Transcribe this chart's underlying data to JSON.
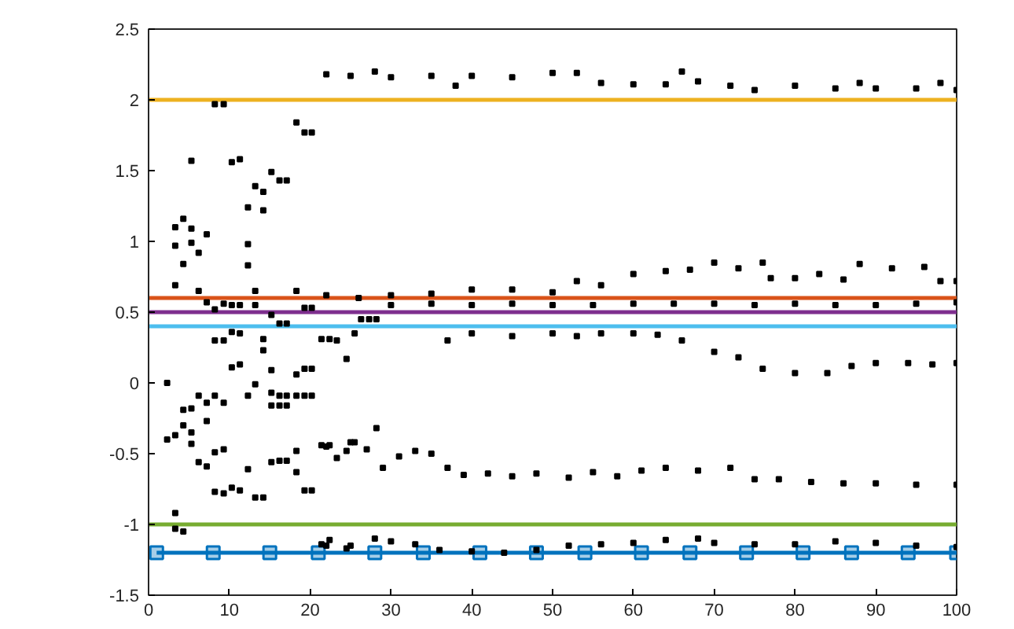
{
  "chart_data": {
    "type": "scatter",
    "xlim": [
      0,
      100
    ],
    "ylim": [
      -1.5,
      2.5
    ],
    "xticks": [
      0,
      10,
      20,
      30,
      40,
      50,
      60,
      70,
      80,
      90,
      100
    ],
    "yticks": [
      -1.5,
      -1,
      -0.5,
      0,
      0.5,
      1,
      1.5,
      2,
      2.5
    ],
    "grid": false,
    "series": [
      {
        "type": "line",
        "color": "#edb120",
        "marker": "none",
        "x": [
          0,
          100
        ],
        "values": [
          2,
          2
        ]
      },
      {
        "type": "line",
        "color": "#d95319",
        "marker": "none",
        "x": [
          0,
          100
        ],
        "values": [
          0.6,
          0.6
        ]
      },
      {
        "type": "line",
        "color": "#7e2f8e",
        "marker": "none",
        "x": [
          0,
          100
        ],
        "values": [
          0.5,
          0.5
        ]
      },
      {
        "type": "line",
        "color": "#4dbeee",
        "marker": "none",
        "x": [
          0,
          100
        ],
        "values": [
          0.4,
          0.4
        ]
      },
      {
        "type": "line",
        "color": "#77ac30",
        "marker": "none",
        "x": [
          0,
          100
        ],
        "values": [
          -1,
          -1
        ]
      },
      {
        "type": "line",
        "color": "#0072bd",
        "marker": "square",
        "x": [
          1,
          8,
          15,
          21,
          28,
          34,
          41,
          48,
          54,
          61,
          67,
          74,
          81,
          87,
          94,
          100
        ],
        "values": [
          -1.2,
          -1.2,
          -1.2,
          -1.2,
          -1.2,
          -1.2,
          -1.2,
          -1.2,
          -1.2,
          -1.2,
          -1.2,
          -1.2,
          -1.2,
          -1.2,
          -1.2,
          -1.2
        ]
      },
      {
        "color": "#000000",
        "marker": "square",
        "x": [
          22,
          25,
          28,
          30,
          35,
          38,
          40,
          45,
          50,
          53,
          56,
          60,
          64,
          66,
          68,
          72,
          75,
          80,
          85,
          88,
          90,
          95,
          98,
          100,
          30,
          35,
          40,
          45,
          50,
          53,
          56,
          60,
          64,
          67,
          70,
          73,
          76,
          77,
          80,
          83,
          86,
          88,
          92,
          96,
          98,
          100,
          22,
          26,
          30,
          35,
          40,
          45,
          50,
          55,
          60,
          65,
          70,
          75,
          80,
          85,
          90,
          95,
          100,
          37,
          40,
          45,
          50,
          53,
          56,
          60,
          63,
          66,
          70,
          73,
          76,
          80,
          84,
          87,
          90,
          94,
          97,
          100,
          22,
          25,
          27,
          29,
          31,
          33,
          35,
          37,
          39,
          42,
          45,
          48,
          52,
          55,
          58,
          61,
          64,
          68,
          72,
          75,
          78,
          82,
          86,
          90,
          95,
          100,
          22,
          25,
          28,
          30,
          33,
          36,
          40,
          44,
          48,
          52,
          56,
          60,
          64,
          68,
          70,
          75,
          80,
          85,
          90,
          95,
          100,
          3.3,
          3.3,
          4.3,
          4.3,
          5.3,
          5.3,
          5.3,
          6.2,
          7.2,
          8.2,
          9.3,
          10.3,
          11.3,
          12.3,
          12.3,
          12.3,
          13.2,
          14.2,
          14.2,
          15.2,
          16.2,
          17.1,
          18.3,
          19.3,
          20.2,
          2.3,
          2.3,
          3.3,
          3.3,
          3.3,
          3.3,
          4.3,
          4.3,
          4.3,
          5.3,
          5.3,
          5.3,
          6.2,
          6.2,
          6.2,
          7.2,
          7.2,
          7.2,
          7.2,
          8.2,
          8.2,
          8.2,
          8.2,
          8.2,
          9.3,
          9.3,
          9.3,
          9.3,
          9.3,
          10.3,
          10.3,
          10.3,
          10.3,
          11.3,
          11.3,
          11.3,
          11.3,
          12.3,
          12.3,
          13.2,
          13.2,
          13.2,
          13.2,
          14.2,
          14.2,
          14.2,
          15.2,
          15.2,
          15.2,
          15.2,
          15.2,
          16.2,
          16.2,
          16.2,
          16.2,
          17.1,
          17.1,
          17.1,
          17.1,
          18.3,
          18.3,
          18.3,
          18.3,
          18.3,
          19.3,
          19.3,
          19.3,
          19.3,
          20.2,
          20.2,
          20.2,
          20.2,
          21.4,
          21.4,
          21.4,
          22.4,
          22.4,
          22.4,
          23.3,
          23.3,
          24.5,
          24.5,
          24.5,
          25.5,
          25.5,
          26.3,
          27.3,
          28.2,
          28.2
        ],
        "values": [
          2.18,
          2.17,
          2.2,
          2.16,
          2.17,
          2.1,
          2.17,
          2.16,
          2.19,
          2.19,
          2.12,
          2.11,
          2.11,
          2.2,
          2.13,
          2.1,
          2.07,
          2.1,
          2.08,
          2.12,
          2.08,
          2.08,
          2.12,
          2.07,
          0.62,
          0.63,
          0.66,
          0.66,
          0.64,
          0.72,
          0.69,
          0.77,
          0.79,
          0.8,
          0.85,
          0.81,
          0.85,
          0.74,
          0.74,
          0.77,
          0.73,
          0.84,
          0.81,
          0.82,
          0.72,
          0.72,
          0.62,
          0.6,
          0.55,
          0.56,
          0.55,
          0.56,
          0.55,
          0.55,
          0.56,
          0.56,
          0.56,
          0.55,
          0.56,
          0.55,
          0.55,
          0.56,
          0.57,
          0.3,
          0.35,
          0.33,
          0.35,
          0.33,
          0.35,
          0.35,
          0.34,
          0.3,
          0.22,
          0.18,
          0.1,
          0.07,
          0.07,
          0.12,
          0.14,
          0.14,
          0.13,
          0.14,
          -0.45,
          -0.42,
          -0.47,
          -0.6,
          -0.52,
          -0.48,
          -0.5,
          -0.6,
          -0.65,
          -0.64,
          -0.66,
          -0.64,
          -0.67,
          -0.63,
          -0.66,
          -0.62,
          -0.6,
          -0.62,
          -0.6,
          -0.68,
          -0.68,
          -0.7,
          -0.71,
          -0.71,
          -0.72,
          -0.72,
          -1.15,
          -1.15,
          -1.1,
          -1.12,
          -1.14,
          -1.18,
          -1.19,
          -1.2,
          -1.18,
          -1.15,
          -1.14,
          -1.13,
          -1.11,
          -1.1,
          -1.13,
          -1.14,
          -1.14,
          -1.12,
          -1.13,
          -1.15,
          -1.16,
          1.1,
          0.97,
          0.84,
          1.16,
          1.57,
          1.09,
          0.99,
          0.92,
          1.05,
          1.97,
          1.97,
          1.56,
          1.58,
          1.24,
          0.98,
          0.83,
          1.39,
          1.35,
          1.22,
          1.49,
          1.43,
          1.43,
          1.84,
          1.77,
          1.77,
          0.0,
          -0.4,
          0.69,
          -0.37,
          -0.92,
          -1.03,
          -0.19,
          -0.3,
          -1.05,
          -0.18,
          -0.35,
          -0.43,
          0.65,
          -0.09,
          -0.56,
          0.57,
          -0.14,
          -0.27,
          -0.59,
          0.52,
          0.3,
          -0.09,
          -0.49,
          -0.77,
          0.56,
          0.3,
          -0.14,
          -0.47,
          -0.78,
          0.55,
          0.36,
          0.11,
          -0.74,
          0.55,
          0.35,
          0.13,
          -0.76,
          -0.09,
          -0.61,
          0.65,
          0.55,
          -0.01,
          -0.81,
          0.31,
          0.23,
          -0.81,
          0.48,
          0.09,
          -0.07,
          -0.16,
          -0.56,
          0.42,
          -0.09,
          -0.16,
          -0.55,
          0.42,
          -0.09,
          -0.16,
          -0.55,
          0.65,
          0.06,
          -0.09,
          -0.48,
          -0.63,
          0.53,
          0.1,
          -0.09,
          -0.76,
          0.53,
          0.1,
          -0.09,
          -0.76,
          0.31,
          -0.44,
          -1.14,
          0.31,
          -0.44,
          -1.11,
          0.3,
          -0.53,
          0.17,
          -0.48,
          -1.17,
          0.35,
          -0.42,
          0.45,
          0.45,
          -0.32,
          0.45
        ]
      }
    ]
  }
}
